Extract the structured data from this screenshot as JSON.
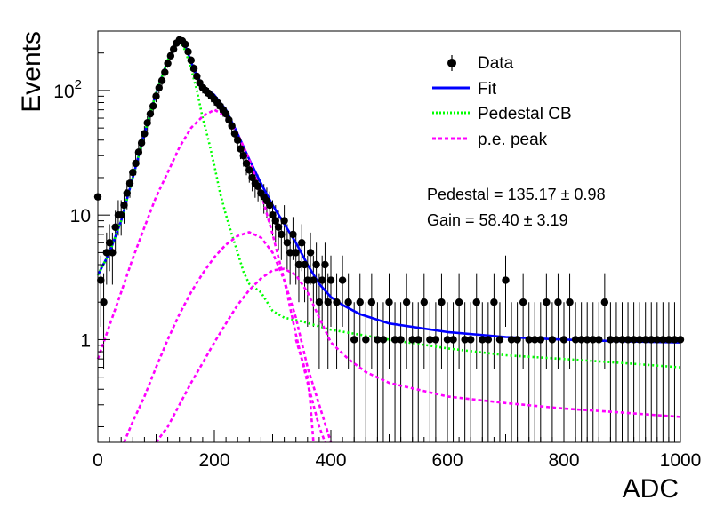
{
  "chart_data": {
    "type": "scatter",
    "xlabel": "ADC",
    "ylabel": "Events",
    "xlim": [
      0,
      1000
    ],
    "ylim_log": [
      0.15,
      300
    ],
    "y_scale": "log",
    "x_tick_labels": [
      "0",
      "200",
      "400",
      "600",
      "800",
      "1000"
    ],
    "y_tick_labels": [
      {
        "value": 1,
        "base": "1",
        "exp": ""
      },
      {
        "value": 10,
        "base": "10",
        "exp": ""
      },
      {
        "value": 100,
        "base": "10",
        "exp": "2"
      }
    ],
    "legend": {
      "position": "top-right",
      "entries": [
        {
          "label": "Data",
          "style": "marker",
          "color": "#000000"
        },
        {
          "label": "Fit",
          "style": "solid",
          "color": "#0000ff"
        },
        {
          "label": "Pedestal CB",
          "style": "dotted",
          "color": "#00ff00"
        },
        {
          "label": "p.e. peak",
          "style": "dashed",
          "color": "#ff00ff"
        }
      ]
    },
    "annotations": [
      {
        "text": "Pedestal = 135.17",
        "pm": "±",
        "err": "0.98"
      },
      {
        "text": "Gain = 58.40",
        "pm": "±",
        "err": "3.19"
      }
    ],
    "series": [
      {
        "name": "Data",
        "color": "#000000",
        "points": [
          [
            0,
            14
          ],
          [
            5,
            3
          ],
          [
            10,
            2
          ],
          [
            15,
            5
          ],
          [
            20,
            6
          ],
          [
            25,
            5
          ],
          [
            30,
            8
          ],
          [
            35,
            10
          ],
          [
            40,
            10
          ],
          [
            45,
            12
          ],
          [
            50,
            15
          ],
          [
            55,
            18
          ],
          [
            60,
            22
          ],
          [
            65,
            26
          ],
          [
            70,
            32
          ],
          [
            75,
            38
          ],
          [
            80,
            45
          ],
          [
            85,
            55
          ],
          [
            90,
            65
          ],
          [
            95,
            75
          ],
          [
            100,
            90
          ],
          [
            105,
            105
          ],
          [
            110,
            120
          ],
          [
            115,
            140
          ],
          [
            120,
            165
          ],
          [
            125,
            190
          ],
          [
            130,
            215
          ],
          [
            135,
            240
          ],
          [
            140,
            255
          ],
          [
            145,
            250
          ],
          [
            150,
            235
          ],
          [
            155,
            205
          ],
          [
            160,
            175
          ],
          [
            165,
            150
          ],
          [
            170,
            130
          ],
          [
            175,
            115
          ],
          [
            180,
            105
          ],
          [
            185,
            100
          ],
          [
            190,
            95
          ],
          [
            195,
            90
          ],
          [
            200,
            85
          ],
          [
            205,
            80
          ],
          [
            210,
            75
          ],
          [
            215,
            70
          ],
          [
            220,
            65
          ],
          [
            225,
            58
          ],
          [
            230,
            52
          ],
          [
            235,
            45
          ],
          [
            240,
            40
          ],
          [
            245,
            34
          ],
          [
            250,
            30
          ],
          [
            255,
            26
          ],
          [
            260,
            23
          ],
          [
            265,
            20
          ],
          [
            270,
            18
          ],
          [
            275,
            17
          ],
          [
            280,
            15
          ],
          [
            285,
            14
          ],
          [
            290,
            13
          ],
          [
            295,
            12
          ],
          [
            300,
            10
          ],
          [
            305,
            9
          ],
          [
            310,
            8
          ],
          [
            315,
            7
          ],
          [
            320,
            9
          ],
          [
            325,
            6
          ],
          [
            330,
            5
          ],
          [
            335,
            7
          ],
          [
            340,
            5
          ],
          [
            345,
            4
          ],
          [
            350,
            6
          ],
          [
            355,
            4
          ],
          [
            360,
            3
          ],
          [
            365,
            5
          ],
          [
            370,
            3
          ],
          [
            375,
            4
          ],
          [
            380,
            2
          ],
          [
            385,
            3
          ],
          [
            390,
            4
          ],
          [
            395,
            2
          ],
          [
            400,
            3
          ],
          [
            410,
            2
          ],
          [
            420,
            3
          ],
          [
            430,
            2
          ],
          [
            440,
            1
          ],
          [
            450,
            2
          ],
          [
            460,
            1
          ],
          [
            470,
            2
          ],
          [
            480,
            1
          ],
          [
            490,
            1
          ],
          [
            500,
            2
          ],
          [
            510,
            1
          ],
          [
            520,
            1
          ],
          [
            530,
            2
          ],
          [
            540,
            1
          ],
          [
            550,
            1
          ],
          [
            560,
            2
          ],
          [
            570,
            1
          ],
          [
            580,
            1
          ],
          [
            590,
            2
          ],
          [
            600,
            1
          ],
          [
            610,
            1
          ],
          [
            620,
            2
          ],
          [
            630,
            1
          ],
          [
            640,
            1
          ],
          [
            650,
            2
          ],
          [
            660,
            1
          ],
          [
            670,
            1
          ],
          [
            680,
            2
          ],
          [
            690,
            1
          ],
          [
            700,
            3
          ],
          [
            710,
            1
          ],
          [
            720,
            1
          ],
          [
            730,
            2
          ],
          [
            740,
            1
          ],
          [
            750,
            1
          ],
          [
            760,
            1
          ],
          [
            770,
            2
          ],
          [
            780,
            1
          ],
          [
            790,
            2
          ],
          [
            800,
            1
          ],
          [
            810,
            2
          ],
          [
            820,
            1
          ],
          [
            830,
            1
          ],
          [
            840,
            1
          ],
          [
            850,
            1
          ],
          [
            860,
            1
          ],
          [
            870,
            2
          ],
          [
            880,
            1
          ],
          [
            890,
            1
          ],
          [
            900,
            1
          ],
          [
            910,
            1
          ],
          [
            920,
            1
          ],
          [
            930,
            1
          ],
          [
            940,
            1
          ],
          [
            950,
            1
          ],
          [
            960,
            1
          ],
          [
            970,
            1
          ],
          [
            980,
            1
          ],
          [
            990,
            1
          ],
          [
            1000,
            1
          ]
        ]
      },
      {
        "name": "Fit",
        "color": "#0000ff",
        "points": [
          [
            0,
            3.3
          ],
          [
            20,
            5
          ],
          [
            40,
            9
          ],
          [
            60,
            20
          ],
          [
            80,
            45
          ],
          [
            100,
            95
          ],
          [
            120,
            175
          ],
          [
            130,
            220
          ],
          [
            140,
            250
          ],
          [
            150,
            230
          ],
          [
            160,
            170
          ],
          [
            170,
            130
          ],
          [
            180,
            110
          ],
          [
            190,
            100
          ],
          [
            200,
            92
          ],
          [
            220,
            70
          ],
          [
            240,
            45
          ],
          [
            260,
            28
          ],
          [
            280,
            18
          ],
          [
            300,
            12
          ],
          [
            320,
            8.5
          ],
          [
            340,
            6
          ],
          [
            360,
            4
          ],
          [
            380,
            2.8
          ],
          [
            400,
            2.2
          ],
          [
            420,
            1.9
          ],
          [
            450,
            1.6
          ],
          [
            500,
            1.35
          ],
          [
            600,
            1.15
          ],
          [
            700,
            1.05
          ],
          [
            800,
            1.0
          ],
          [
            900,
            0.97
          ],
          [
            1000,
            0.95
          ]
        ]
      },
      {
        "name": "Pedestal CB",
        "color": "#00ff00",
        "points": [
          [
            0,
            3.3
          ],
          [
            20,
            5
          ],
          [
            40,
            9
          ],
          [
            60,
            20
          ],
          [
            80,
            45
          ],
          [
            100,
            95
          ],
          [
            120,
            175
          ],
          [
            130,
            220
          ],
          [
            140,
            250
          ],
          [
            150,
            210
          ],
          [
            160,
            150
          ],
          [
            170,
            100
          ],
          [
            180,
            60
          ],
          [
            190,
            40
          ],
          [
            200,
            25
          ],
          [
            210,
            15
          ],
          [
            220,
            10
          ],
          [
            230,
            7
          ],
          [
            240,
            5
          ],
          [
            250,
            3.5
          ],
          [
            260,
            2.8
          ],
          [
            280,
            2.4
          ],
          [
            300,
            1.7
          ],
          [
            320,
            1.5
          ],
          [
            350,
            1.4
          ],
          [
            400,
            1.2
          ],
          [
            500,
            1.0
          ],
          [
            600,
            0.85
          ],
          [
            700,
            0.75
          ],
          [
            800,
            0.7
          ],
          [
            900,
            0.65
          ],
          [
            1000,
            0.6
          ]
        ]
      },
      {
        "name": "p.e. peak 1",
        "color": "#ff00ff",
        "points": [
          [
            0,
            0.7
          ],
          [
            20,
            1.3
          ],
          [
            40,
            2.4
          ],
          [
            60,
            4.5
          ],
          [
            80,
            8
          ],
          [
            100,
            14
          ],
          [
            120,
            22
          ],
          [
            140,
            35
          ],
          [
            160,
            50
          ],
          [
            180,
            62
          ],
          [
            200,
            70
          ],
          [
            220,
            62
          ],
          [
            240,
            45
          ],
          [
            260,
            28
          ],
          [
            280,
            15
          ],
          [
            300,
            7
          ],
          [
            320,
            3
          ],
          [
            340,
            1.1
          ],
          [
            360,
            0.45
          ],
          [
            380,
            0.2
          ],
          [
            390,
            0.15
          ]
        ]
      },
      {
        "name": "p.e. peak 2",
        "color": "#ff00ff",
        "points": [
          [
            45,
            0.15
          ],
          [
            60,
            0.22
          ],
          [
            80,
            0.35
          ],
          [
            100,
            0.6
          ],
          [
            120,
            1
          ],
          [
            140,
            1.6
          ],
          [
            160,
            2.4
          ],
          [
            180,
            3.4
          ],
          [
            200,
            4.6
          ],
          [
            220,
            5.8
          ],
          [
            240,
            6.8
          ],
          [
            260,
            7.3
          ],
          [
            280,
            6.6
          ],
          [
            300,
            5
          ],
          [
            320,
            3
          ],
          [
            340,
            1.5
          ],
          [
            360,
            0.6
          ],
          [
            380,
            0.3
          ],
          [
            400,
            0.15
          ]
        ]
      },
      {
        "name": "p.e. peak 3",
        "color": "#ff00ff",
        "points": [
          [
            100,
            0.15
          ],
          [
            120,
            0.2
          ],
          [
            140,
            0.3
          ],
          [
            160,
            0.45
          ],
          [
            180,
            0.65
          ],
          [
            200,
            0.95
          ],
          [
            220,
            1.35
          ],
          [
            240,
            1.9
          ],
          [
            260,
            2.5
          ],
          [
            280,
            3.1
          ],
          [
            300,
            3.6
          ],
          [
            320,
            3.7
          ],
          [
            340,
            3.3
          ],
          [
            360,
            2.4
          ],
          [
            380,
            1.5
          ],
          [
            400,
            0.95
          ],
          [
            430,
            0.7
          ],
          [
            460,
            0.55
          ],
          [
            500,
            0.45
          ],
          [
            600,
            0.35
          ],
          [
            700,
            0.31
          ],
          [
            800,
            0.28
          ],
          [
            900,
            0.26
          ],
          [
            1000,
            0.24
          ]
        ]
      },
      {
        "name": "p.e. peak tail",
        "color": "#ff00ff",
        "points": [
          [
            340,
            1.0
          ],
          [
            350,
            0.7
          ],
          [
            360,
            0.5
          ],
          [
            365,
            0.3
          ],
          [
            370,
            0.15
          ]
        ]
      }
    ]
  }
}
